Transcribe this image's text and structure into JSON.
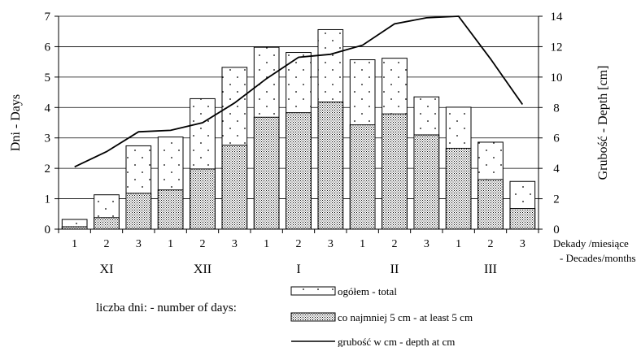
{
  "chart_data": {
    "type": "bar",
    "title": "",
    "x_axis_label": [
      "Dekady /miesiące",
      "- Decades/months"
    ],
    "y_left_label": "Dni - Days",
    "y_right_label": "Grubość - Depth [cm]",
    "y_left_range": [
      0,
      7
    ],
    "y_left_ticks": [
      0,
      1,
      2,
      3,
      4,
      5,
      6,
      7
    ],
    "y_right_range": [
      0,
      14
    ],
    "y_right_ticks": [
      0,
      2,
      4,
      6,
      8,
      10,
      12,
      14
    ],
    "grid": "horizontal",
    "categories": [
      "1",
      "2",
      "3",
      "1",
      "2",
      "3",
      "1",
      "2",
      "3",
      "1",
      "2",
      "3",
      "1",
      "2",
      "3"
    ],
    "months": [
      "XI",
      "XII",
      "I",
      "II",
      "III"
    ],
    "series": [
      {
        "name": "ogółem - total",
        "kind": "bar",
        "axis": "left",
        "pattern": "sparse-dots",
        "values": [
          0.32,
          1.13,
          2.74,
          3.03,
          4.29,
          5.32,
          5.98,
          5.81,
          6.56,
          5.57,
          5.62,
          4.35,
          4.01,
          2.86,
          1.57
        ]
      },
      {
        "name": "co najmniej 5 cm - at least 5 cm",
        "kind": "bar",
        "axis": "left",
        "pattern": "dense-dots",
        "values": [
          0.08,
          0.38,
          1.18,
          1.29,
          1.98,
          2.76,
          3.68,
          3.83,
          4.18,
          3.43,
          3.79,
          3.1,
          2.66,
          1.63,
          0.68
        ]
      },
      {
        "name": "grubość w cm - depth at cm",
        "kind": "line",
        "axis": "right",
        "values": [
          4.1,
          5.1,
          6.4,
          6.5,
          7.0,
          8.3,
          9.9,
          11.3,
          11.5,
          12.1,
          13.5,
          13.9,
          14.0,
          11.2,
          8.2
        ]
      }
    ],
    "legend": {
      "position": "bottom",
      "caption": "liczba dni: - number of days:"
    }
  }
}
